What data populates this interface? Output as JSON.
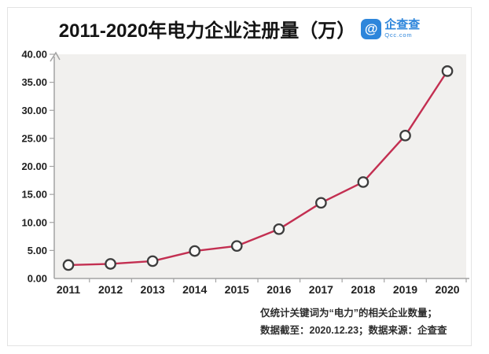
{
  "header": {
    "title": "2011-2020年电力企业注册量（万）",
    "logo": {
      "icon": "qichacha-logo-icon",
      "icon_glyph": "@",
      "brand": "企查查",
      "domain": "Qcc.com",
      "color": "#2e86db"
    }
  },
  "chart_data": {
    "type": "line",
    "title": "2011-2020年电力企业注册量（万）",
    "categories": [
      "2011",
      "2012",
      "2013",
      "2014",
      "2015",
      "2016",
      "2017",
      "2018",
      "2019",
      "2020"
    ],
    "series": [
      {
        "name": "电力企业注册量（万）",
        "values": [
          2.4,
          2.6,
          3.1,
          4.9,
          5.8,
          8.8,
          13.5,
          17.2,
          25.5,
          37.0
        ]
      }
    ],
    "ylim": [
      0,
      40
    ],
    "ytick_step": 5,
    "ytick_labels": [
      "0.00",
      "5.00",
      "10.00",
      "15.00",
      "20.00",
      "25.00",
      "30.00",
      "35.00",
      "40.00"
    ],
    "xlabel": "",
    "ylabel": "",
    "grid": false,
    "legend_position": "none",
    "line_color": "#c32f51",
    "marker_fill": "#fbfaf9",
    "marker_stroke": "#3d3d3d",
    "plot_bg": "#f1f0ee",
    "axis_color": "#a3a3a3"
  },
  "footnotes": {
    "line1": "仅统计关键词为“电力”的相关企业数量；",
    "line2": "数据截至：2020.12.23；数据来源：企查查"
  }
}
